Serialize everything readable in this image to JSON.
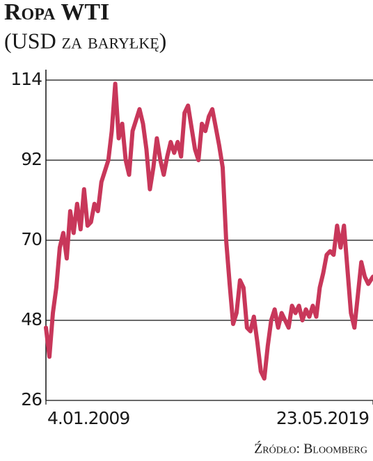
{
  "chart_data": {
    "type": "line",
    "title": "Ropa WTI",
    "subtitle": "(USD za baryłkę)",
    "source": "Źródło: Bloomberg",
    "color": "#c8375a",
    "grid": true,
    "xlim": [
      2009.01,
      2019.39
    ],
    "xticks": [
      {
        "value": 2009.01,
        "label": "4.01.2009"
      },
      {
        "value": 2019.39,
        "label": "23.05.2019"
      }
    ],
    "ylim": [
      26,
      114
    ],
    "yticks": [
      26,
      48,
      70,
      92,
      114
    ],
    "x": [
      2009.01,
      2009.12,
      2009.23,
      2009.34,
      2009.45,
      2009.56,
      2009.67,
      2009.78,
      2009.89,
      2010.0,
      2010.11,
      2010.22,
      2010.33,
      2010.44,
      2010.55,
      2010.66,
      2010.77,
      2010.88,
      2010.99,
      2011.1,
      2011.21,
      2011.32,
      2011.43,
      2011.54,
      2011.65,
      2011.76,
      2011.87,
      2011.98,
      2012.09,
      2012.2,
      2012.31,
      2012.42,
      2012.53,
      2012.64,
      2012.75,
      2012.86,
      2012.97,
      2013.08,
      2013.19,
      2013.3,
      2013.41,
      2013.52,
      2013.63,
      2013.74,
      2013.85,
      2013.96,
      2014.07,
      2014.18,
      2014.29,
      2014.4,
      2014.51,
      2014.62,
      2014.73,
      2014.84,
      2014.95,
      2015.06,
      2015.17,
      2015.28,
      2015.39,
      2015.5,
      2015.61,
      2015.72,
      2015.83,
      2015.94,
      2016.05,
      2016.16,
      2016.27,
      2016.38,
      2016.49,
      2016.6,
      2016.71,
      2016.82,
      2016.93,
      2017.04,
      2017.15,
      2017.26,
      2017.37,
      2017.48,
      2017.59,
      2017.7,
      2017.81,
      2017.92,
      2018.03,
      2018.14,
      2018.25,
      2018.36,
      2018.47,
      2018.58,
      2018.69,
      2018.8,
      2018.91,
      2019.02,
      2019.13,
      2019.24,
      2019.39
    ],
    "values": [
      46,
      38,
      50,
      57,
      68,
      72,
      65,
      78,
      72,
      80,
      73,
      84,
      74,
      75,
      80,
      78,
      86,
      89,
      92,
      100,
      113,
      98,
      102,
      92,
      88,
      100,
      103,
      106,
      102,
      95,
      84,
      90,
      98,
      92,
      88,
      93,
      97,
      94,
      97,
      93,
      105,
      107,
      101,
      95,
      92,
      102,
      100,
      104,
      106,
      101,
      96,
      90,
      70,
      58,
      47,
      50,
      59,
      57,
      46,
      45,
      49,
      42,
      34,
      32,
      41,
      48,
      51,
      46,
      50,
      48,
      46,
      52,
      50,
      52,
      48,
      51,
      49,
      52,
      49,
      57,
      61,
      66,
      67,
      66,
      74,
      68,
      74,
      62,
      50,
      46,
      55,
      64,
      60,
      58,
      60
    ]
  }
}
